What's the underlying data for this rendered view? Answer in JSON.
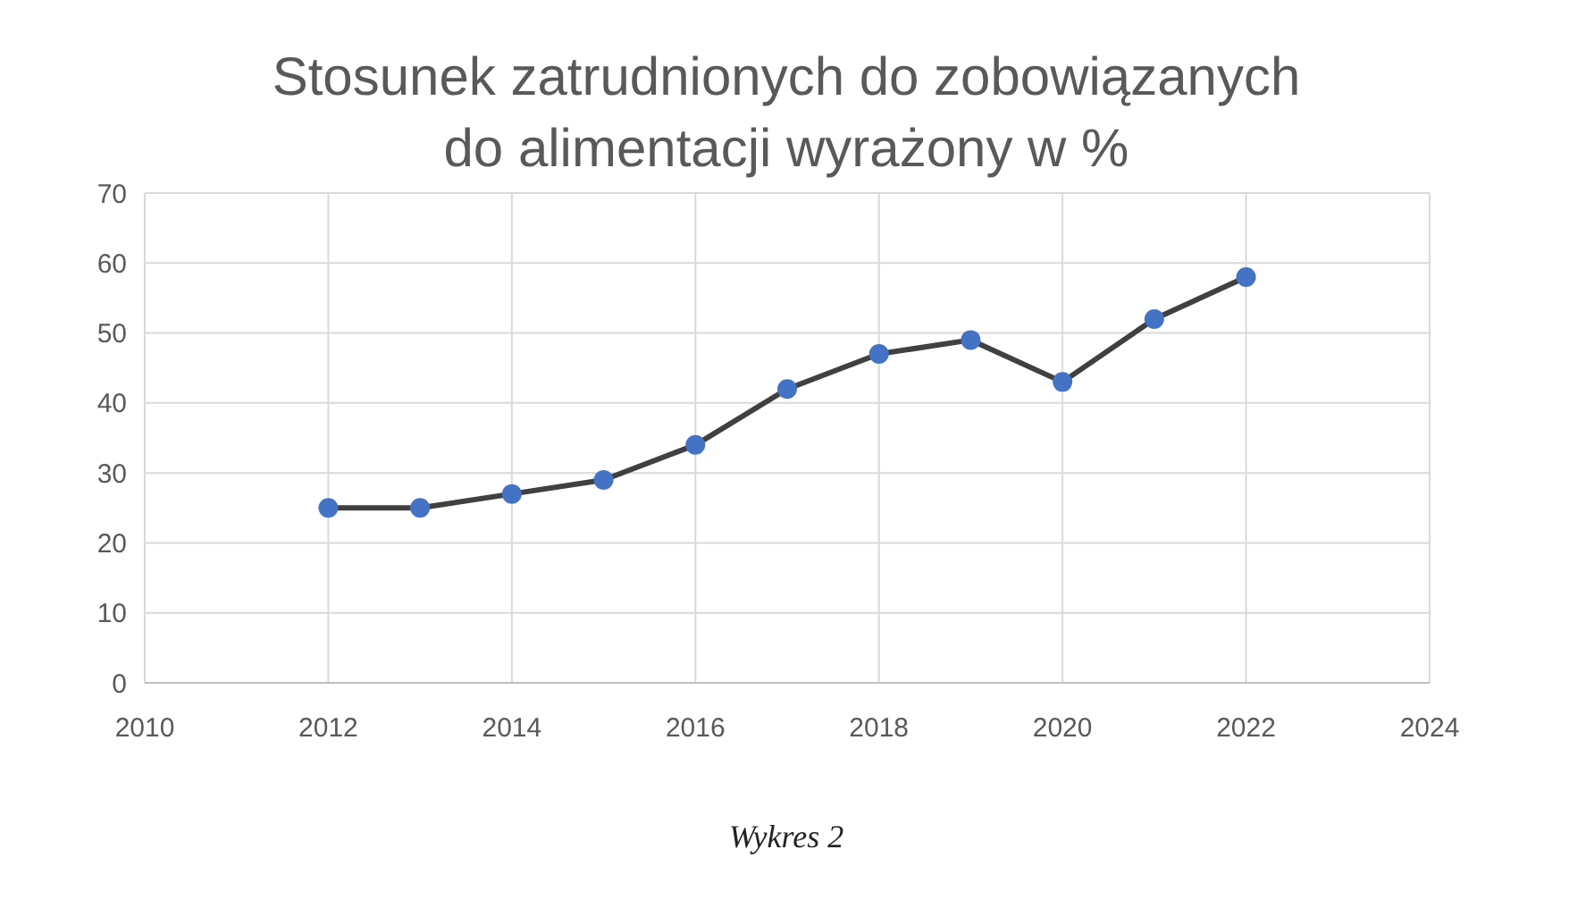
{
  "chart_data": {
    "type": "line",
    "title": "Stosunek zatrudnionych do zobowiązanych\ndo alimentacji wyrażony w %",
    "x": [
      2012,
      2013,
      2014,
      2015,
      2016,
      2017,
      2018,
      2019,
      2020,
      2021,
      2022
    ],
    "series": [
      {
        "color": "#4472c4",
        "values": [
          25,
          25,
          27,
          29,
          34,
          42,
          47,
          49,
          43,
          52,
          58
        ]
      }
    ],
    "xlim": [
      2010,
      2024
    ],
    "xticks": [
      2010,
      2012,
      2014,
      2016,
      2018,
      2020,
      2022,
      2024
    ],
    "ylim": [
      0,
      70
    ],
    "yticks": [
      0,
      10,
      20,
      30,
      40,
      50,
      60,
      70
    ],
    "grid": true,
    "marker": "circle",
    "line_style": "solid",
    "annotations": [
      "Wykres 2"
    ]
  }
}
